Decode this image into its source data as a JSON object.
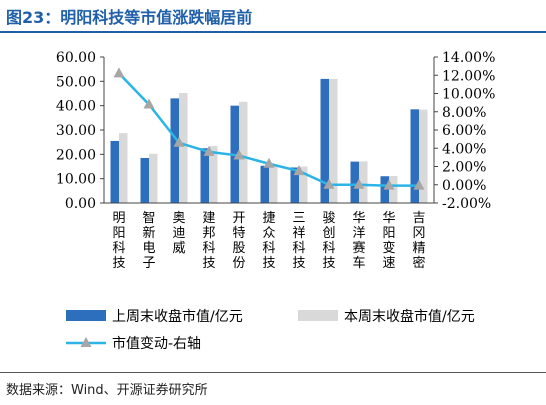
{
  "figure": {
    "title": "图23：明阳科技等市值涨跌幅居前",
    "source": "数据来源：Wind、开源证券研究所"
  },
  "colors": {
    "title": "#1f5fa8",
    "prev_bar": "#2e6fbd",
    "curr_bar": "#d9d9d9",
    "line": "#2bb4e6",
    "marker": "#a6a6a6"
  },
  "chart_data": {
    "type": "bar",
    "categories": [
      "明阳科技",
      "智新电子",
      "奥迪威",
      "建邦科技",
      "开特股份",
      "捷众科技",
      "三祥科技",
      "骏创科技",
      "华洋赛车",
      "华阳变速",
      "吉冈精密"
    ],
    "series": [
      {
        "name": "上周末收盘市值/亿元",
        "type": "bar",
        "axis": "left",
        "values": [
          25.5,
          18.5,
          43.0,
          22.5,
          40.0,
          15.3,
          14.6,
          51.0,
          17.0,
          11.0,
          38.5
        ]
      },
      {
        "name": "本周末收盘市值/亿元",
        "type": "bar",
        "axis": "left",
        "values": [
          28.7,
          20.2,
          45.2,
          23.4,
          41.6,
          15.6,
          15.0,
          51.0,
          17.1,
          11.1,
          38.4
        ]
      },
      {
        "name": "市值变动-右轴",
        "type": "line",
        "axis": "right",
        "values": [
          12.2,
          8.8,
          4.6,
          3.6,
          3.2,
          2.3,
          1.5,
          0.0,
          0.0,
          -0.1,
          -0.1
        ]
      }
    ],
    "left_axis": {
      "ylim": [
        0,
        60
      ],
      "ticks": [
        "0.00",
        "10.00",
        "20.00",
        "30.00",
        "40.00",
        "50.00",
        "60.00"
      ]
    },
    "right_axis": {
      "ylim": [
        -2,
        14
      ],
      "ticks": [
        "-2.00%",
        "0.00%",
        "2.00%",
        "4.00%",
        "6.00%",
        "8.00%",
        "10.00%",
        "12.00%",
        "14.00%"
      ]
    },
    "grid": false,
    "legend_position": "bottom"
  }
}
